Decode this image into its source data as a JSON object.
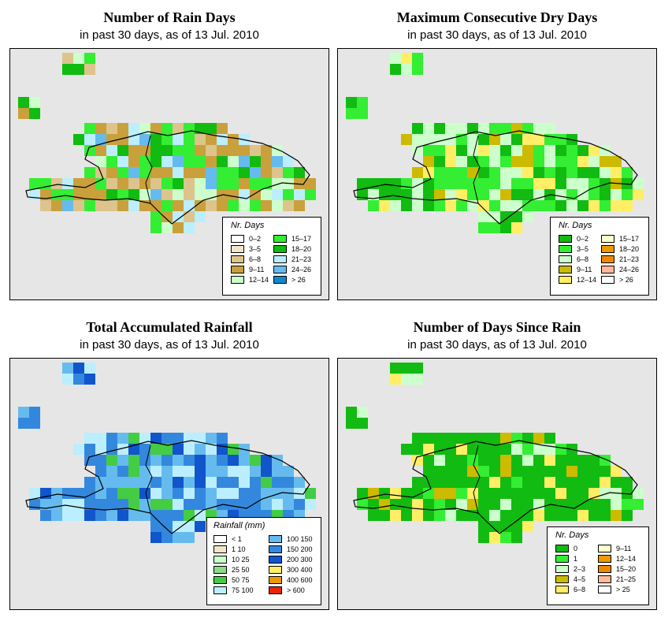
{
  "panels": [
    {
      "title": "Number of Rain Days",
      "subtitle": "in past 30 days, as of  13 Jul. 2010",
      "legend": {
        "title": "Nr. Days",
        "cols": [
          [
            {
              "label": "0–2",
              "color": "#ffffff"
            },
            {
              "label": "3–5",
              "color": "#f2e6c8"
            },
            {
              "label": "6–8",
              "color": "#ddc48c"
            },
            {
              "label": "9–11",
              "color": "#c9a03c"
            },
            {
              "label": "12–14",
              "color": "#ccffcc"
            }
          ],
          [
            {
              "label": "15–17",
              "color": "#33ee33"
            },
            {
              "label": "18–20",
              "color": "#11bb11"
            },
            {
              "label": "21–23",
              "color": "#bbeeff"
            },
            {
              "label": "24–26",
              "color": "#66bbee"
            },
            {
              "label": "> 26",
              "color": "#1188cc"
            }
          ]
        ]
      }
    },
    {
      "title": "Maximum Consecutive Dry Days",
      "subtitle": "in past 30 days, as of  13 Jul. 2010",
      "legend": {
        "title": "Nr. Days",
        "cols": [
          [
            {
              "label": "0–2",
              "color": "#11bb11"
            },
            {
              "label": "3–5",
              "color": "#33ee33"
            },
            {
              "label": "6–8",
              "color": "#ccffcc"
            },
            {
              "label": "9–11",
              "color": "#ccbb00"
            },
            {
              "label": "12–14",
              "color": "#ffee66"
            }
          ],
          [
            {
              "label": "15–17",
              "color": "#ffffcc"
            },
            {
              "label": "18–20",
              "color": "#ee9900"
            },
            {
              "label": "21–23",
              "color": "#ee8800"
            },
            {
              "label": "24–26",
              "color": "#ffbb99"
            },
            {
              "label": "> 26",
              "color": "#ffffff"
            }
          ]
        ]
      }
    },
    {
      "title": "Total Accumulated Rainfall",
      "subtitle": "in past 30 days, as of  13 Jul. 2010",
      "legend": {
        "title": "Rainfall (mm)",
        "cols": [
          [
            {
              "label": "< 1",
              "color": "#ffffff"
            },
            {
              "label": "1    10",
              "color": "#f2e6c8"
            },
            {
              "label": "10    25",
              "color": "#ccffcc"
            },
            {
              "label": "25    50",
              "color": "#88dd88"
            },
            {
              "label": "50    75",
              "color": "#44cc44"
            },
            {
              "label": "75   100",
              "color": "#bbeeff"
            }
          ],
          [
            {
              "label": "100   150",
              "color": "#66bbee"
            },
            {
              "label": "150   200",
              "color": "#3388dd"
            },
            {
              "label": "200   300",
              "color": "#1155cc"
            },
            {
              "label": "300   400",
              "color": "#ffee66"
            },
            {
              "label": "400   600",
              "color": "#ee9900"
            },
            {
              "label": "> 600",
              "color": "#ee2200"
            }
          ]
        ]
      }
    },
    {
      "title": "Number of Days Since Rain",
      "subtitle": "in past 30 days, as of  13 Jul. 2010",
      "legend": {
        "title": "Nr. Days",
        "cols": [
          [
            {
              "label": "0",
              "color": "#11bb11"
            },
            {
              "label": "1",
              "color": "#33ee33"
            },
            {
              "label": "2–3",
              "color": "#ccffcc"
            },
            {
              "label": "4–5",
              "color": "#ccbb00"
            },
            {
              "label": "6–8",
              "color": "#ffee66"
            }
          ],
          [
            {
              "label": "9–11",
              "color": "#ffffcc"
            },
            {
              "label": "12–14",
              "color": "#ee9900"
            },
            {
              "label": "15–20",
              "color": "#ee8800"
            },
            {
              "label": "21–25",
              "color": "#ffbb99"
            },
            {
              "label": "> 25",
              "color": "#ffffff"
            }
          ]
        ]
      }
    }
  ]
}
